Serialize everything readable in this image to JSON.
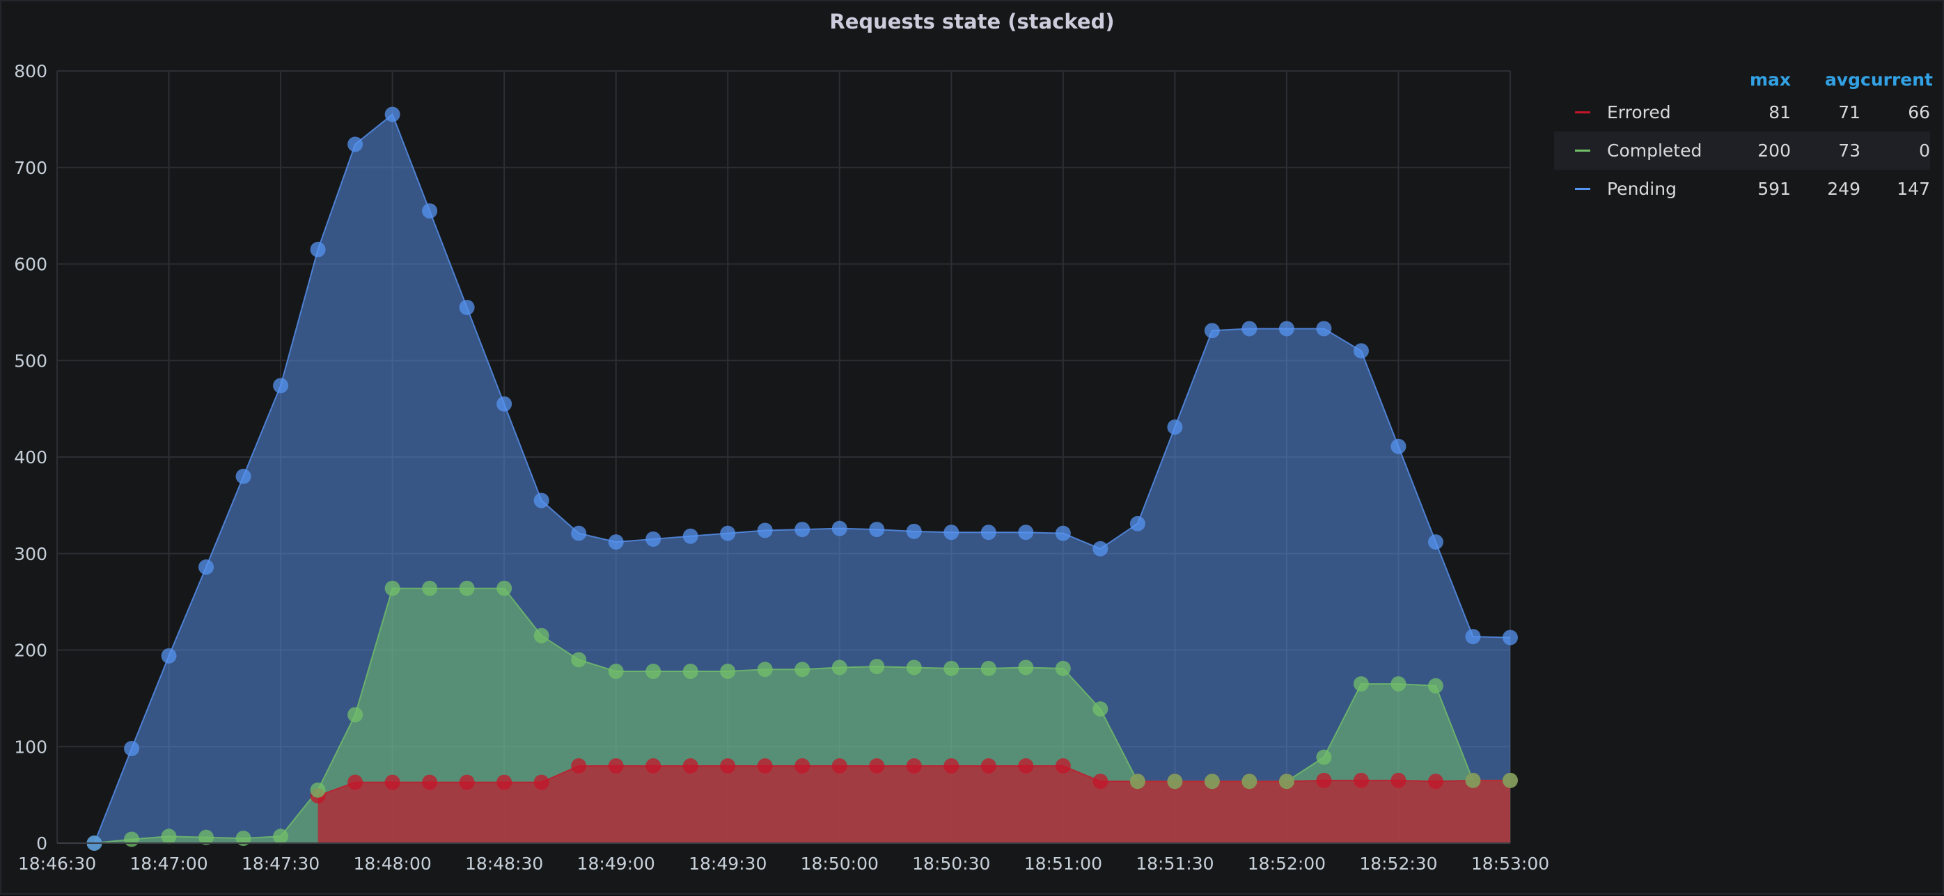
{
  "panel": {
    "title": "Requests state (stacked)"
  },
  "legend": {
    "columns": [
      "max",
      "avg",
      "current"
    ],
    "rows": [
      {
        "name": "Errored",
        "color": "#c4162a",
        "max": "81",
        "avg": "71",
        "current": "66"
      },
      {
        "name": "Completed",
        "color": "#73bf69",
        "max": "200",
        "avg": "73",
        "current": "0"
      },
      {
        "name": "Pending",
        "color": "#5794f2",
        "max": "591",
        "avg": "249",
        "current": "147"
      }
    ]
  },
  "chart_data": {
    "type": "area",
    "stacked": true,
    "title": "Requests state (stacked)",
    "x": [
      "18:46:40",
      "18:46:50",
      "18:47:00",
      "18:47:10",
      "18:47:20",
      "18:47:30",
      "18:47:40",
      "18:47:50",
      "18:48:00",
      "18:48:10",
      "18:48:20",
      "18:48:30",
      "18:48:40",
      "18:48:50",
      "18:49:00",
      "18:49:10",
      "18:49:20",
      "18:49:30",
      "18:49:40",
      "18:49:50",
      "18:50:00",
      "18:50:10",
      "18:50:20",
      "18:50:30",
      "18:50:40",
      "18:50:50",
      "18:51:00",
      "18:51:10",
      "18:51:20",
      "18:51:30",
      "18:51:40",
      "18:51:50",
      "18:52:00",
      "18:52:10",
      "18:52:20",
      "18:52:30",
      "18:52:40",
      "18:52:50",
      "18:53:00"
    ],
    "xticks": [
      "18:46:30",
      "18:47:00",
      "18:47:30",
      "18:48:00",
      "18:48:30",
      "18:49:00",
      "18:49:30",
      "18:50:00",
      "18:50:30",
      "18:51:00",
      "18:51:30",
      "18:52:00",
      "18:52:30",
      "18:53:00"
    ],
    "yticks": [
      "0",
      "100",
      "200",
      "300",
      "400",
      "500",
      "600",
      "700",
      "800"
    ],
    "ylim": [
      0,
      800
    ],
    "grid": true,
    "legend_position": "right",
    "series": [
      {
        "name": "Errored",
        "color": "#c4162a",
        "stacked_values": [
          0,
          0,
          0,
          0,
          0,
          0,
          49,
          63,
          63,
          63,
          63,
          63,
          63,
          80,
          80,
          80,
          80,
          80,
          80,
          80,
          80,
          80,
          80,
          80,
          80,
          80,
          80,
          64,
          64,
          64,
          64,
          64,
          64,
          65,
          65,
          65,
          64,
          65,
          65
        ]
      },
      {
        "name": "Completed",
        "color": "#73bf69",
        "stacked_values": [
          0,
          4,
          7,
          6,
          5,
          7,
          55,
          133,
          264,
          264,
          264,
          264,
          215,
          190,
          178,
          178,
          178,
          178,
          180,
          180,
          182,
          183,
          182,
          181,
          181,
          182,
          181,
          139,
          64,
          64,
          64,
          64,
          64,
          89,
          165,
          165,
          163,
          65,
          65
        ]
      },
      {
        "name": "Pending",
        "color": "#5794f2",
        "stacked_values": [
          0,
          98,
          194,
          286,
          380,
          474,
          615,
          724,
          755,
          655,
          555,
          455,
          355,
          321,
          312,
          315,
          318,
          321,
          324,
          325,
          326,
          325,
          323,
          322,
          322,
          322,
          321,
          305,
          331,
          431,
          531,
          533,
          533,
          533,
          510,
          411,
          312,
          214,
          213
        ]
      }
    ]
  }
}
